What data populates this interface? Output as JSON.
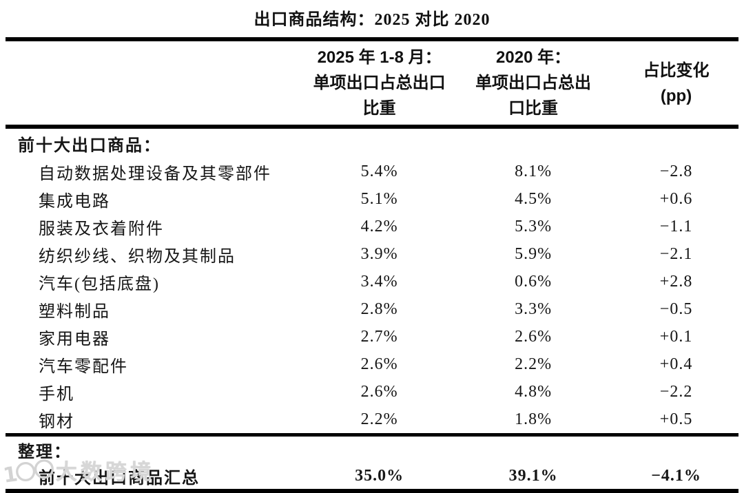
{
  "title": "出口商品结构：2025 对比 2020",
  "header": {
    "col_commodity": "",
    "col_2025": {
      "line1": "2025 年 1-8 月：",
      "line2": "单项出口占总出口",
      "line3": "比重"
    },
    "col_2020": {
      "line1": "2020 年：",
      "line2": "单项出口占总出",
      "line3": "口比重"
    },
    "col_change": {
      "line1": "占比变化",
      "line2": "(pp)"
    }
  },
  "sections": {
    "top10": {
      "header": "前十大出口商品：",
      "rows": [
        {
          "name": "自动数据处理设备及其零部件",
          "s2025": "5.4%",
          "s2020": "8.1%",
          "chg": "−2.8"
        },
        {
          "name": "集成电路",
          "s2025": "5.1%",
          "s2020": "4.5%",
          "chg": "+0.6"
        },
        {
          "name": "服装及衣着附件",
          "s2025": "4.2%",
          "s2020": "5.3%",
          "chg": "−1.1"
        },
        {
          "name": "纺织纱线、织物及其制品",
          "s2025": "3.9%",
          "s2020": "5.9%",
          "chg": "−2.1"
        },
        {
          "name": "汽车(包括底盘)",
          "s2025": "3.4%",
          "s2020": "0.6%",
          "chg": "+2.8"
        },
        {
          "name": "塑料制品",
          "s2025": "2.8%",
          "s2020": "3.3%",
          "chg": "−0.5"
        },
        {
          "name": "家用电器",
          "s2025": "2.7%",
          "s2020": "2.6%",
          "chg": "+0.1"
        },
        {
          "name": "汽车零配件",
          "s2025": "2.6%",
          "s2020": "2.2%",
          "chg": "+0.4"
        },
        {
          "name": "手机",
          "s2025": "2.6%",
          "s2020": "4.8%",
          "chg": "−2.2"
        },
        {
          "name": "钢材",
          "s2025": "2.2%",
          "s2020": "1.8%",
          "chg": "+0.5"
        }
      ]
    },
    "summary": {
      "header": "整理：",
      "row": {
        "name": "前十大出口商品汇总",
        "s2025": "35.0%",
        "s2020": "39.1%",
        "chg": "−4.1%"
      }
    }
  },
  "watermark": {
    "logo": "1〇〇",
    "text": "大数跨境"
  }
}
